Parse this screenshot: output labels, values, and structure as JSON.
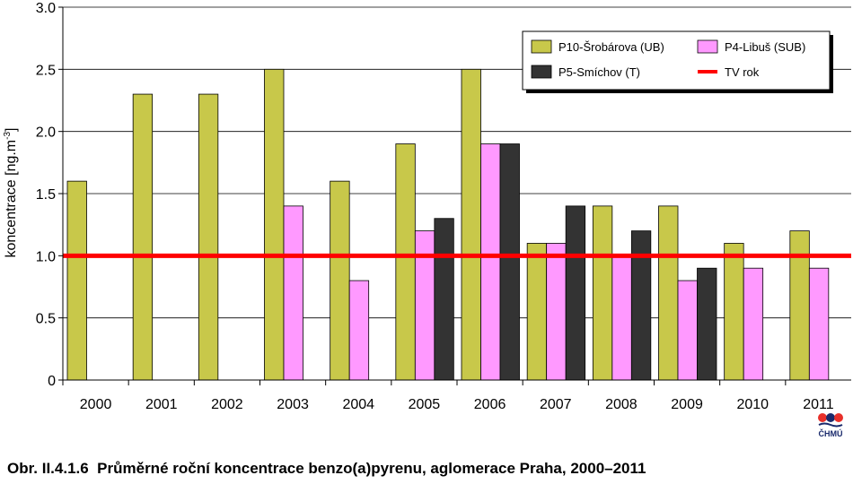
{
  "chart_data": {
    "type": "bar",
    "categories": [
      "2000",
      "2001",
      "2002",
      "2003",
      "2004",
      "2005",
      "2006",
      "2007",
      "2008",
      "2009",
      "2010",
      "2011"
    ],
    "series": [
      {
        "name": "P10-Šrobárova (UB)",
        "color": "#c8c84a",
        "values": [
          1.6,
          2.3,
          2.3,
          2.5,
          1.6,
          1.9,
          2.5,
          1.1,
          1.4,
          1.4,
          1.1,
          1.2
        ]
      },
      {
        "name": "P4-Libuš (SUB)",
        "color": "#ff99ff",
        "values": [
          null,
          null,
          null,
          1.4,
          0.8,
          1.2,
          1.9,
          1.1,
          1.0,
          0.8,
          0.9,
          0.9
        ]
      },
      {
        "name": "P5-Smíchov (T)",
        "color": "#333333",
        "values": [
          null,
          null,
          null,
          null,
          null,
          1.3,
          1.9,
          1.4,
          1.2,
          0.9,
          null,
          null
        ]
      }
    ],
    "reference_line": {
      "name": "TV rok",
      "value": 1.0,
      "color": "#ff0000"
    },
    "ylabel": "koncentrace [ng.m-3]",
    "ylabel_main": "koncentrace [ng.m",
    "ylabel_sup": "-3",
    "ylabel_end": "]",
    "ylim": [
      0,
      3.0
    ],
    "yticks": [
      "0",
      "0.5",
      "1.0",
      "1.5",
      "2.0",
      "2.5",
      "3.0"
    ],
    "grid": true,
    "legend_position": "top-right"
  },
  "caption": "Obr. II.4.1.6  Průměrné roční koncentrace benzo(a)pyrenu, aglomerace Praha, 2000–2011",
  "logo": {
    "text": "ČHMÚ",
    "dot_colors": [
      "#e8302a",
      "#1a2a6c",
      "#e8302a"
    ]
  }
}
